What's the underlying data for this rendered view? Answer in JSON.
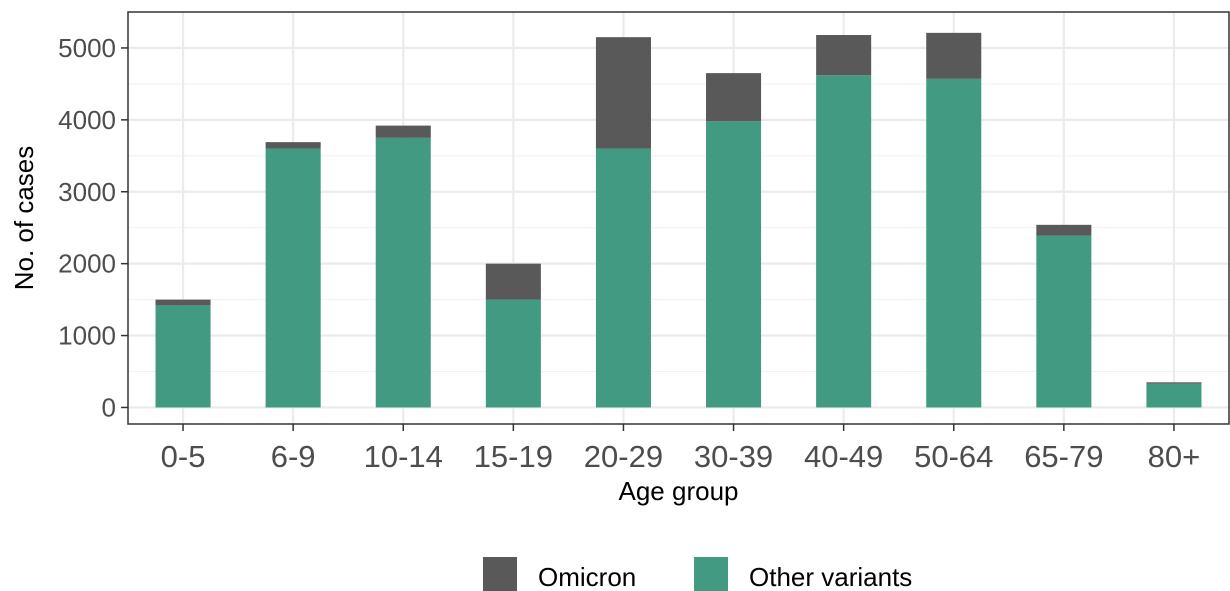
{
  "chart_data": {
    "type": "bar",
    "stacked": true,
    "categories": [
      "0-5",
      "6-9",
      "10-14",
      "15-19",
      "20-29",
      "30-39",
      "40-49",
      "50-64",
      "65-79",
      "80+"
    ],
    "series": [
      {
        "name": "Other variants",
        "color": "#439A82",
        "values": [
          1420,
          3600,
          3750,
          1500,
          3600,
          3980,
          4620,
          4570,
          2390,
          330
        ]
      },
      {
        "name": "Omicron",
        "color": "#595959",
        "values": [
          80,
          90,
          170,
          500,
          1550,
          670,
          560,
          640,
          150,
          20
        ]
      }
    ],
    "title": "",
    "xlabel": "Age group",
    "ylabel": "No. of cases",
    "ylim": [
      -230,
      5500
    ],
    "yticks": [
      "0",
      "1000",
      "2000",
      "3000",
      "4000",
      "5000"
    ],
    "grid": true,
    "legend": {
      "position": "bottom",
      "entries": [
        {
          "label": "Omicron",
          "color": "#595959"
        },
        {
          "label": "Other variants",
          "color": "#439A82"
        }
      ]
    }
  }
}
